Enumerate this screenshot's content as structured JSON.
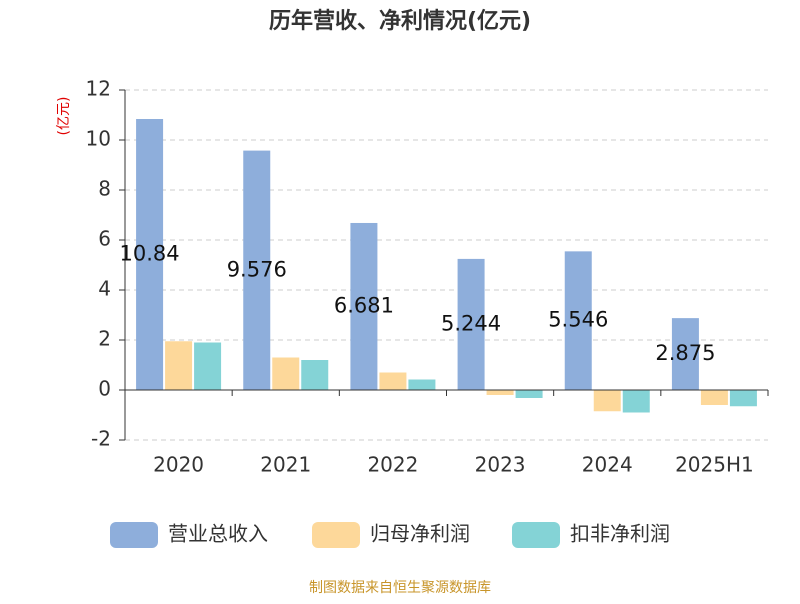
{
  "chart_data": {
    "type": "bar",
    "title": "历年营收、净利情况(亿元)",
    "y_axis_label": "(亿元)",
    "source": "制图数据来自恒生聚源数据库",
    "categories": [
      "2020",
      "2021",
      "2022",
      "2023",
      "2024",
      "2025H1"
    ],
    "series": [
      {
        "name": "营业总收入",
        "color": "#8eaedb",
        "values": [
          10.84,
          9.576,
          6.681,
          5.244,
          5.546,
          2.875
        ],
        "show_labels": true
      },
      {
        "name": "归母净利润",
        "color": "#fdd89a",
        "values": [
          1.95,
          1.3,
          0.7,
          -0.2,
          -0.85,
          -0.6
        ]
      },
      {
        "name": "扣非净利润",
        "color": "#84d3d6",
        "values": [
          1.9,
          1.2,
          0.42,
          -0.32,
          -0.9,
          -0.65
        ]
      }
    ],
    "ylim": [
      -2,
      12
    ],
    "yticks": [
      -2,
      0,
      2,
      4,
      6,
      8,
      10,
      12
    ],
    "grid": true
  }
}
